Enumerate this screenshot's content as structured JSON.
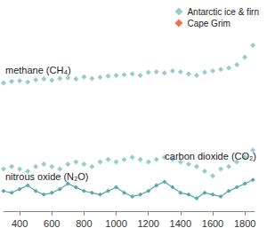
{
  "chart_data": {
    "type": "scatter",
    "xlim": [
      300,
      1860
    ],
    "xticks": [
      400,
      600,
      800,
      1000,
      1200,
      1400,
      1600,
      1800
    ],
    "grid": false,
    "tick_labels": "x",
    "legend": "top right",
    "sources": [
      {
        "name": "Antarctic ice & firn",
        "color": "#7dbfbf",
        "marker": "diamond"
      },
      {
        "name": "Cape Grim",
        "color": "#e8501a",
        "marker": "diamond"
      }
    ],
    "series": [
      {
        "name": "methane (CH₄)",
        "source": "Antarctic ice & firn",
        "type": "scatter",
        "marker": "diamond",
        "color": "#7dbfbf",
        "ylim": [
          250,
          950
        ],
        "x": [
          300,
          350,
          400,
          450,
          500,
          550,
          600,
          650,
          700,
          750,
          800,
          850,
          900,
          950,
          1000,
          1050,
          1100,
          1150,
          1200,
          1250,
          1300,
          1350,
          1400,
          1450,
          1500,
          1550,
          1600,
          1650,
          1700,
          1750,
          1800,
          1850
        ],
        "values": [
          675,
          680,
          682,
          678,
          685,
          688,
          684,
          690,
          692,
          688,
          695,
          690,
          694,
          698,
          700,
          702,
          705,
          700,
          710,
          712,
          708,
          715,
          712,
          705,
          700,
          710,
          715,
          720,
          725,
          735,
          760,
          800
        ]
      },
      {
        "name": "carbon dioxide (CO₂)",
        "source": "Antarctic ice & firn",
        "type": "scatter",
        "marker": "diamond",
        "color": "#7dbfbf",
        "ylim": [
          260,
          350
        ],
        "x": [
          300,
          350,
          400,
          450,
          500,
          550,
          600,
          650,
          700,
          750,
          800,
          850,
          900,
          950,
          1000,
          1050,
          1100,
          1150,
          1200,
          1250,
          1300,
          1350,
          1400,
          1450,
          1500,
          1550,
          1600,
          1650,
          1700,
          1750,
          1800,
          1850
        ],
        "values": [
          278,
          279,
          278,
          277,
          279,
          280,
          279,
          278,
          280,
          281,
          280,
          279,
          281,
          282,
          281,
          282,
          283,
          282,
          281,
          282,
          283,
          282,
          281,
          280,
          279,
          277,
          275,
          278,
          279,
          281,
          283,
          286
        ]
      },
      {
        "name": "nitrous oxide (N₂O)",
        "source": "Antarctic ice & firn",
        "type": "line",
        "marker": "diamond",
        "line_style": "solid",
        "color": "#5aa6b0",
        "ylim": [
          255,
          370
        ],
        "x": [
          300,
          350,
          400,
          450,
          500,
          550,
          600,
          650,
          700,
          750,
          800,
          850,
          900,
          950,
          1000,
          1050,
          1100,
          1150,
          1200,
          1250,
          1300,
          1350,
          1400,
          1450,
          1500,
          1550,
          1600,
          1650,
          1700,
          1750,
          1800,
          1850
        ],
        "values": [
          266,
          265,
          267,
          269,
          266,
          264,
          265,
          267,
          270,
          268,
          266,
          265,
          264,
          266,
          268,
          265,
          263,
          264,
          266,
          269,
          271,
          268,
          265,
          264,
          262,
          265,
          264,
          263,
          266,
          268,
          270,
          272
        ]
      },
      {
        "name": "Cape Grim",
        "source": "Cape Grim",
        "type": "scatter",
        "marker": "diamond",
        "color": "#e8501a",
        "ylim": [
          250,
          950
        ],
        "x": [],
        "values": []
      }
    ]
  }
}
